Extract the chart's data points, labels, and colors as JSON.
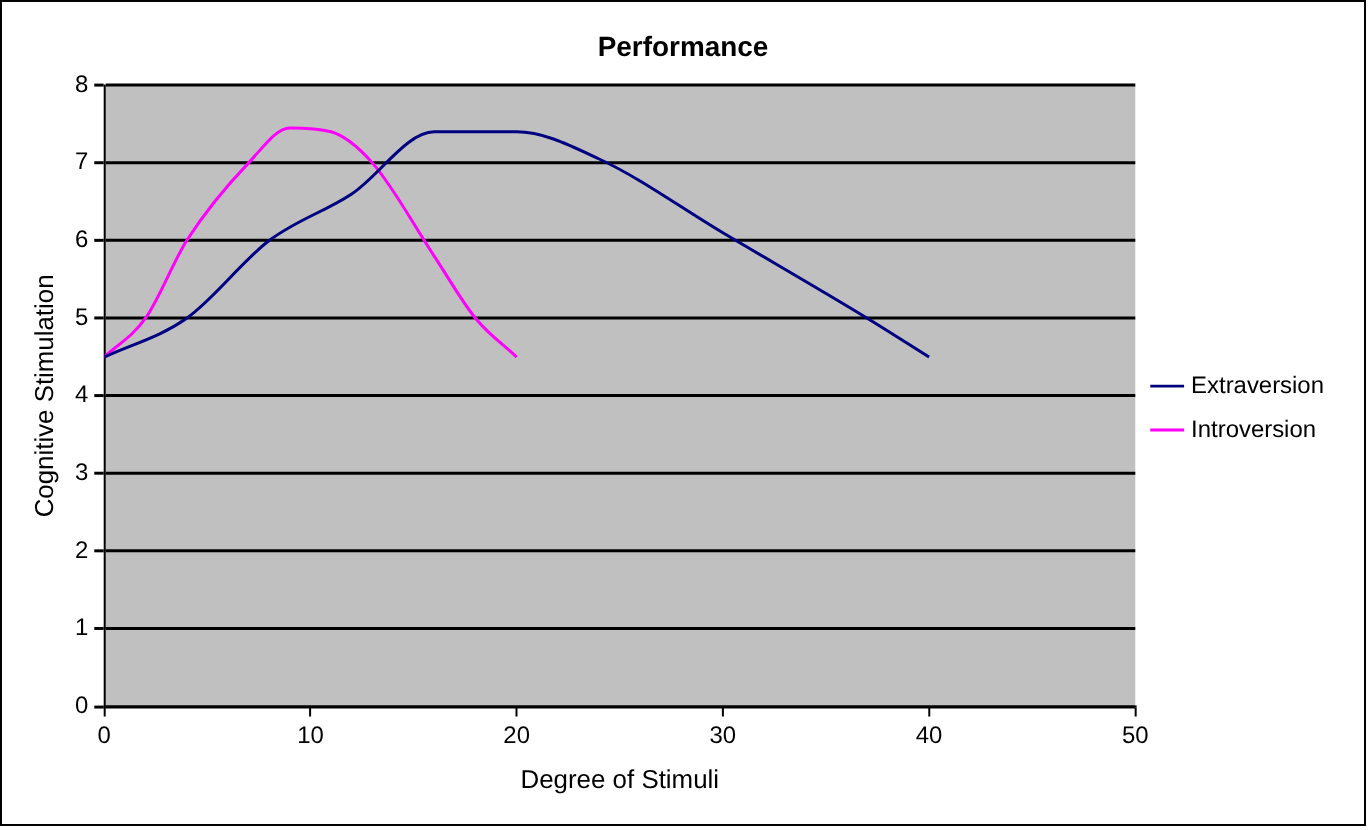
{
  "chart_data": {
    "type": "line",
    "title": "Performance",
    "xlabel": "Degree of Stimuli",
    "ylabel": "Cognitive Stimulation",
    "series": [
      {
        "name": "Extraversion",
        "color": "#000080",
        "x": [
          0,
          4,
          8,
          12,
          16,
          20,
          24,
          30,
          37,
          40
        ],
        "values": [
          4.5,
          5.0,
          6.0,
          6.6,
          7.4,
          7.4,
          7.05,
          6.1,
          5.0,
          4.5
        ]
      },
      {
        "name": "Introversion",
        "color": "#ff00ff",
        "x": [
          0,
          2,
          4,
          7,
          9,
          11,
          13,
          16,
          18,
          20
        ],
        "values": [
          4.5,
          5.0,
          6.0,
          7.0,
          7.45,
          7.4,
          7.0,
          5.8,
          5.0,
          4.5
        ]
      }
    ],
    "xlim": [
      0,
      50
    ],
    "xticks": [
      0,
      10,
      20,
      30,
      40,
      50
    ],
    "ylim": [
      0,
      8
    ],
    "yticks": [
      0,
      1,
      2,
      3,
      4,
      5,
      6,
      7,
      8
    ],
    "grid": "y",
    "legend": "right",
    "marker": "none",
    "line_style": "solid"
  }
}
